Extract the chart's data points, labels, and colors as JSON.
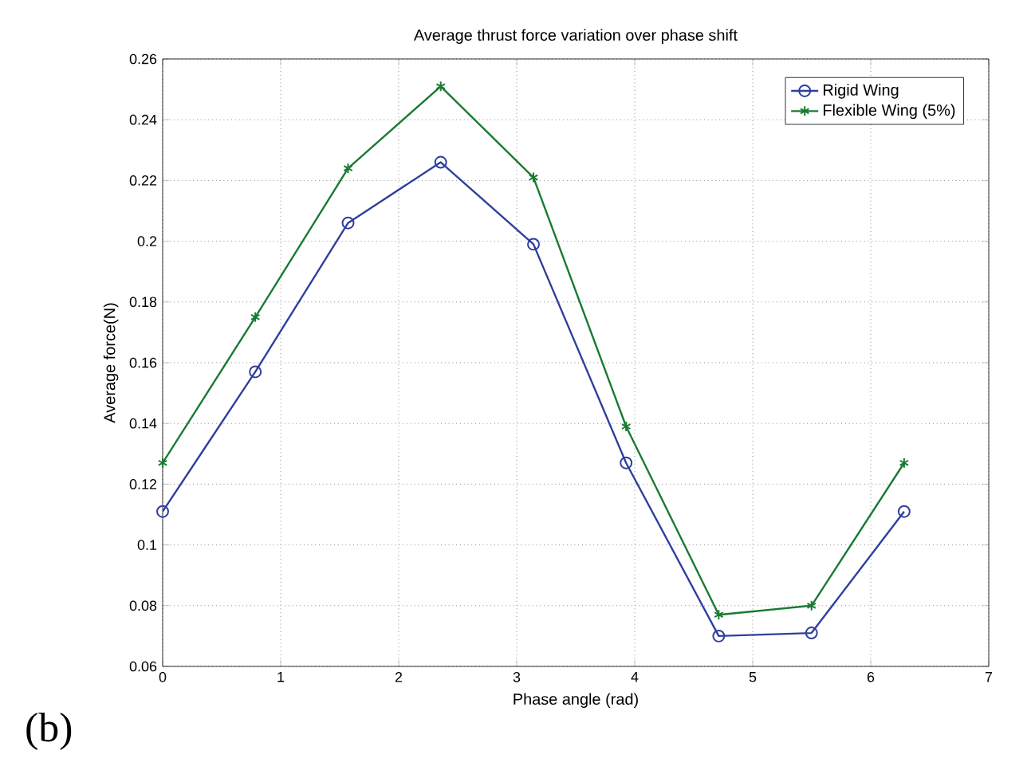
{
  "chart_data": {
    "type": "line",
    "title": "Average thrust force variation over phase shift",
    "xlabel": "Phase angle (rad)",
    "ylabel": "Average force(N)",
    "annotations": [
      "(b)"
    ],
    "x": [
      0,
      0.785,
      1.571,
      2.356,
      3.142,
      3.927,
      4.712,
      5.498,
      6.283
    ],
    "series": [
      {
        "name": "Rigid Wing",
        "color": "#2e3f9e",
        "marker": "circle",
        "values": [
          0.111,
          0.157,
          0.206,
          0.226,
          0.199,
          0.127,
          0.07,
          0.071,
          0.111
        ]
      },
      {
        "name": "Flexible Wing (5%)",
        "color": "#1a7a33",
        "marker": "cross",
        "values": [
          0.127,
          0.175,
          0.224,
          0.251,
          0.221,
          0.139,
          0.077,
          0.08,
          0.127
        ]
      }
    ],
    "xlim": [
      0,
      7
    ],
    "xticks": [
      0,
      1,
      2,
      3,
      4,
      5,
      6,
      7
    ],
    "ylim": [
      0.06,
      0.26
    ],
    "yticks": [
      0.06,
      0.08,
      0.1,
      0.12,
      0.14,
      0.16,
      0.18,
      0.2,
      0.22,
      0.24,
      0.26
    ],
    "grid": true,
    "legend": "top right",
    "line_style": "solid"
  }
}
